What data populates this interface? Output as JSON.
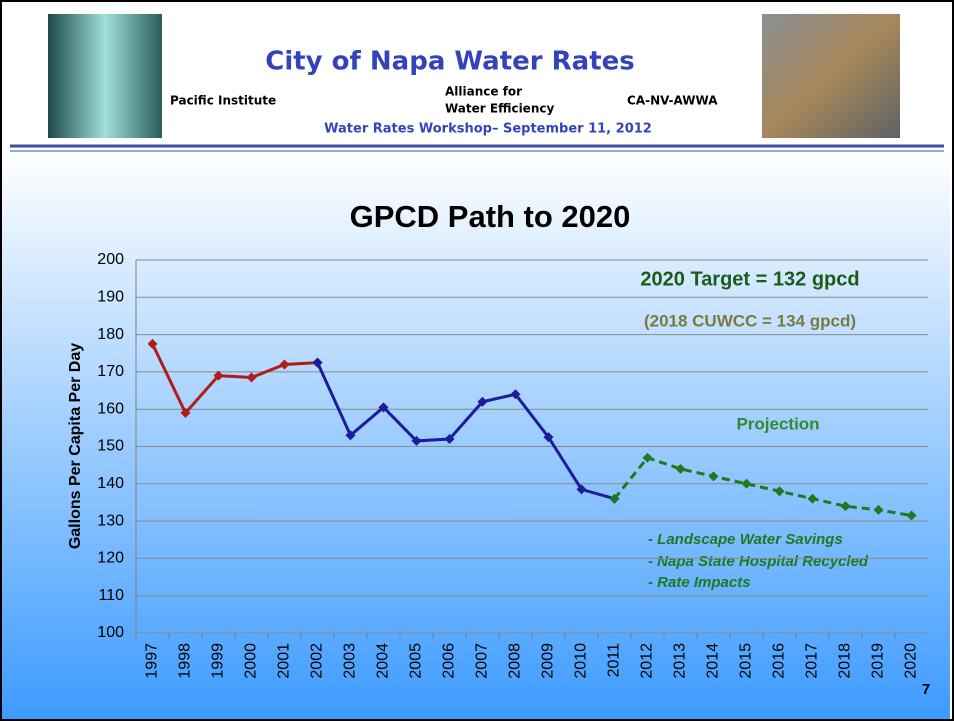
{
  "header": {
    "title": "City of Napa Water Rates",
    "left": "Pacific Institute",
    "center": [
      "Alliance for",
      "Water Efficiency"
    ],
    "right": "CA-NV-AWWA",
    "subtitle": "Water Rates Workshop– September 11, 2012"
  },
  "footer": {
    "page": "7"
  },
  "chart_data": {
    "type": "line",
    "title": "GPCD Path to 2020",
    "ylabel": "Gallons Per Capita Per Day",
    "categories": [
      "1997",
      "1998",
      "1999",
      "2000",
      "2001",
      "2002",
      "2003",
      "2004",
      "2005",
      "2006",
      "2007",
      "2008",
      "2009",
      "2010",
      "2011",
      "2012",
      "2013",
      "2014",
      "2015",
      "2016",
      "2017",
      "2018",
      "2019",
      "2020"
    ],
    "series": [
      {
        "color": "#b01c1c",
        "dashed": false,
        "values": [
          177.5,
          159,
          169,
          168.5,
          172,
          172.5,
          null,
          null,
          null,
          null,
          null,
          null,
          null,
          null,
          null,
          null,
          null,
          null,
          null,
          null,
          null,
          null,
          null,
          null
        ]
      },
      {
        "color": "#1c1c9c",
        "dashed": false,
        "values": [
          null,
          null,
          null,
          null,
          null,
          172.5,
          153,
          160.5,
          151.5,
          152,
          162,
          164,
          152.5,
          138.5,
          136,
          null,
          null,
          null,
          null,
          null,
          null,
          null,
          null,
          null
        ]
      },
      {
        "color": "#1f7a1f",
        "dashed": true,
        "values": [
          null,
          null,
          null,
          null,
          null,
          null,
          null,
          null,
          null,
          null,
          null,
          null,
          null,
          null,
          136,
          147,
          144,
          142,
          140,
          138,
          136,
          134,
          133,
          131.5
        ]
      }
    ],
    "ylim": [
      100,
      200
    ],
    "yticks": [
      100,
      110,
      120,
      130,
      140,
      150,
      160,
      170,
      180,
      190,
      200
    ],
    "grid": true,
    "annotations": [
      "2020 Target = 132 gpcd",
      "(2018 CUWCC = 134 gpcd)",
      "Projection",
      "- Landscape Water Savings",
      "- Napa State Hospital Recycled",
      "- Rate Impacts"
    ]
  }
}
